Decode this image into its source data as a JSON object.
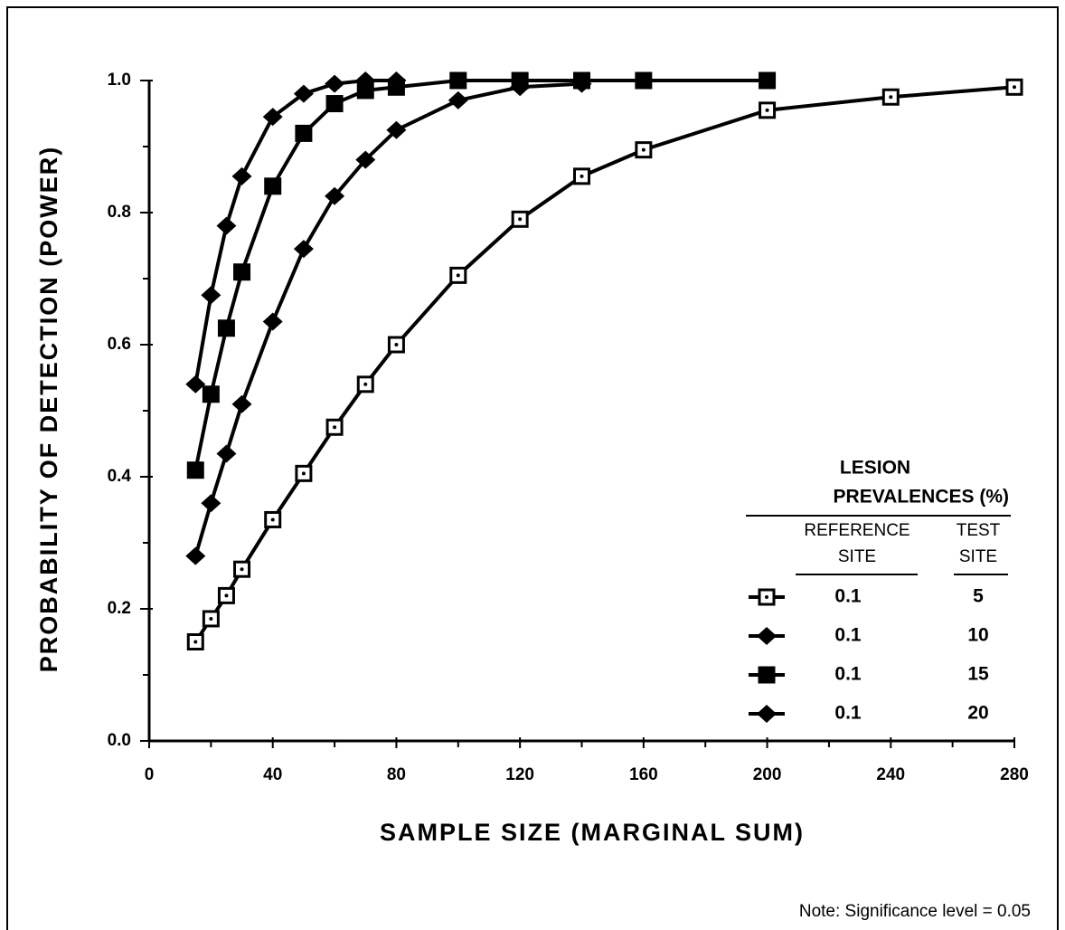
{
  "chart_data": {
    "type": "line",
    "x_label": "SAMPLE SIZE (MARGINAL SUM)",
    "y_label": "PROBABILITY OF DETECTION (POWER)",
    "note": "Note:  Significance level = 0.05",
    "xlim": [
      0,
      280
    ],
    "xticks": [
      0,
      40,
      80,
      120,
      160,
      200,
      240,
      280
    ],
    "x_minor_ticks": [
      20,
      60,
      100,
      140,
      180,
      220,
      260
    ],
    "ylim": [
      0,
      1
    ],
    "yticks": [
      {
        "value": 0,
        "label": "0.0"
      },
      0.2,
      0.4,
      0.6,
      0.8,
      {
        "value": 1,
        "label": "1.0"
      }
    ],
    "y_minor_ticks": [
      0.1,
      0.3,
      0.5,
      0.7,
      0.9
    ],
    "legend": {
      "title": "LESION",
      "subtitle": "PREVALENCES  (%)",
      "columns": [
        "REFERENCE SITE",
        "TEST SITE"
      ]
    },
    "series": [
      {
        "reference_site": 0.1,
        "test_site": 5,
        "marker": "open-square",
        "color": "#000000",
        "x": [
          15,
          20,
          25,
          30,
          40,
          50,
          60,
          70,
          80,
          100,
          120,
          140,
          160,
          200,
          240,
          280
        ],
        "values": [
          0.15,
          0.185,
          0.22,
          0.26,
          0.335,
          0.405,
          0.475,
          0.54,
          0.6,
          0.705,
          0.79,
          0.855,
          0.895,
          0.955,
          0.975,
          0.99
        ]
      },
      {
        "reference_site": 0.1,
        "test_site": 10,
        "marker": "diamond",
        "color": "#000000",
        "x": [
          15,
          20,
          25,
          30,
          40,
          50,
          60,
          70,
          80,
          100,
          120,
          140
        ],
        "values": [
          0.28,
          0.36,
          0.435,
          0.51,
          0.635,
          0.745,
          0.825,
          0.88,
          0.925,
          0.97,
          0.99,
          0.995
        ]
      },
      {
        "reference_site": 0.1,
        "test_site": 15,
        "marker": "square",
        "color": "#000000",
        "x": [
          15,
          20,
          25,
          30,
          40,
          50,
          60,
          70,
          80,
          100,
          120,
          140,
          160,
          200
        ],
        "values": [
          0.41,
          0.525,
          0.625,
          0.71,
          0.84,
          0.92,
          0.965,
          0.985,
          0.99,
          1,
          1,
          1,
          1,
          1
        ]
      },
      {
        "reference_site": 0.1,
        "test_site": 20,
        "marker": "diamond",
        "color": "#000000",
        "x": [
          15,
          20,
          25,
          30,
          40,
          50,
          60,
          70,
          80
        ],
        "values": [
          0.54,
          0.675,
          0.78,
          0.855,
          0.945,
          0.98,
          0.995,
          1,
          1
        ]
      }
    ]
  }
}
